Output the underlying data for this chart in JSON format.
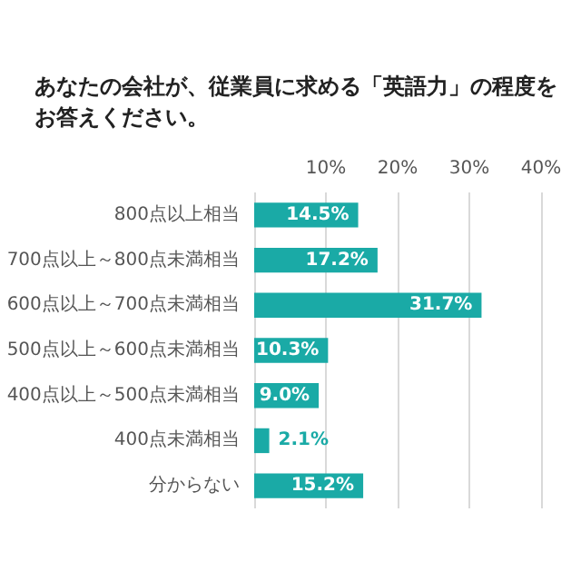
{
  "chart_data": {
    "type": "bar",
    "orientation": "horizontal",
    "title": "あなたの会社が、従業員に求める「英語力」の程度をお答えください。",
    "categories": [
      "800点以上相当",
      "700点以上～800点未満相当",
      "600点以上～700点未満相当",
      "500点以上～600点未満相当",
      "400点以上～500点未満相当",
      "400点未満相当",
      "分からない"
    ],
    "values": [
      14.5,
      17.2,
      31.7,
      10.3,
      9.0,
      2.1,
      15.2
    ],
    "value_labels": [
      "14.5%",
      "17.2%",
      "31.7%",
      "10.3%",
      "9.0%",
      "2.1%",
      "15.2%"
    ],
    "color": "#1aaaa6",
    "xlim": [
      0,
      40
    ],
    "xticks": [
      {
        "value": 0,
        "label": null
      },
      {
        "value": 10,
        "label": "10%"
      },
      {
        "value": 20,
        "label": "20%"
      },
      {
        "value": 30,
        "label": "30%"
      },
      {
        "value": 40,
        "label": "40%"
      }
    ],
    "grid": "x"
  }
}
